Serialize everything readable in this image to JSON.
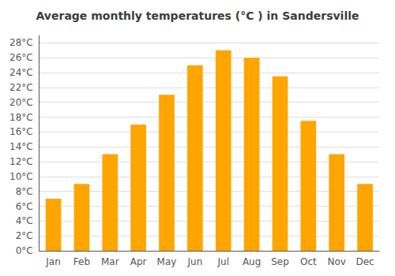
{
  "chart_data": {
    "type": "bar",
    "title": "Average monthly temperatures (°C ) in Sandersville",
    "categories": [
      "Jan",
      "Feb",
      "Mar",
      "Apr",
      "May",
      "Jun",
      "Jul",
      "Aug",
      "Sep",
      "Oct",
      "Nov",
      "Dec"
    ],
    "values": [
      7,
      9,
      13,
      17,
      21,
      25,
      27,
      26,
      23.5,
      17.5,
      13,
      9
    ],
    "color": "#FFA500",
    "ylim": [
      0,
      29
    ],
    "yticks": [
      {
        "value": 0,
        "label": "0°C"
      },
      {
        "value": 2,
        "label": "2°C"
      },
      {
        "value": 4,
        "label": "4°C"
      },
      {
        "value": 6,
        "label": "6°C"
      },
      {
        "value": 8,
        "label": "8°C"
      },
      {
        "value": 10,
        "label": "10°C"
      },
      {
        "value": 12,
        "label": "12°C"
      },
      {
        "value": 14,
        "label": "14°C"
      },
      {
        "value": 16,
        "label": "16°C"
      },
      {
        "value": 18,
        "label": "18°C"
      },
      {
        "value": 20,
        "label": "20°C"
      },
      {
        "value": 22,
        "label": "22°C"
      },
      {
        "value": 24,
        "label": "24°C"
      },
      {
        "value": 26,
        "label": "26°C"
      },
      {
        "value": 28,
        "label": "28°C"
      }
    ],
    "grid": true
  }
}
